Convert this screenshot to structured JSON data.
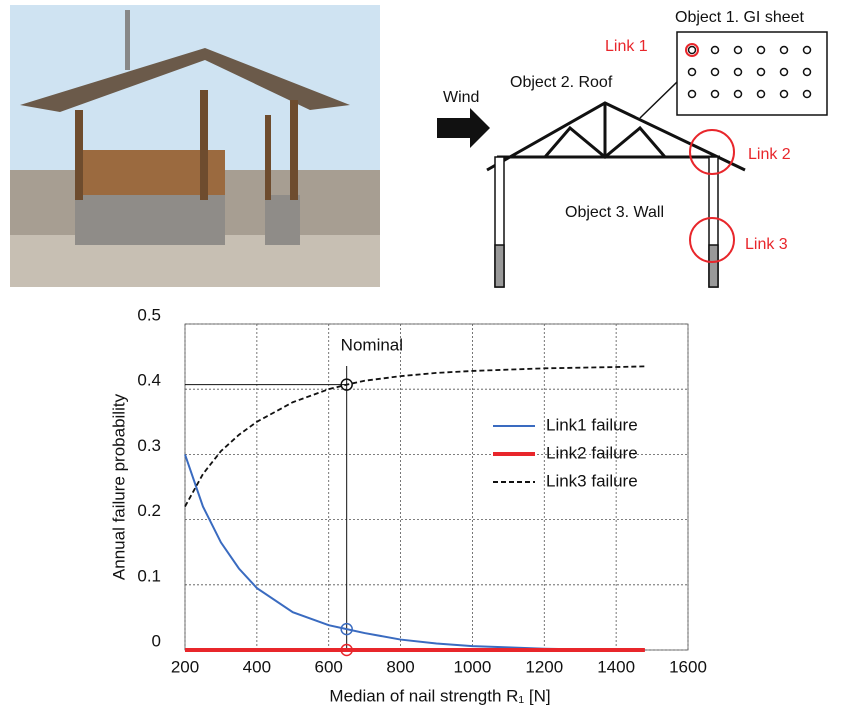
{
  "diagram": {
    "sheet_label": "Object 1. GI sheet",
    "link1": "Link 1",
    "roof_label": "Object 2. Roof",
    "wind": "Wind",
    "link2": "Link 2",
    "wall_label": "Object 3. Wall",
    "link3": "Link 3"
  },
  "chart_data": {
    "type": "line",
    "xlabel": "Median of nail strength R₁ [N]",
    "ylabel": "Annual failure probability",
    "annotation": "Nominal",
    "nominal_x": 650,
    "x": [
      200,
      250,
      300,
      350,
      400,
      500,
      600,
      650,
      700,
      800,
      900,
      1000,
      1100,
      1200,
      1300,
      1400,
      1480
    ],
    "series": [
      {
        "name": "Link1 failure",
        "color": "#3a6bc0",
        "dash": "solid",
        "values": [
          0.3,
          0.22,
          0.165,
          0.125,
          0.095,
          0.058,
          0.038,
          0.032,
          0.026,
          0.016,
          0.01,
          0.006,
          0.004,
          0.002,
          0.001,
          0.0005,
          0
        ]
      },
      {
        "name": "Link2 failure",
        "color": "#e8262b",
        "dash": "solid",
        "values": [
          0,
          0,
          0,
          0,
          0,
          0,
          0,
          0,
          0,
          0,
          0,
          0,
          0,
          0,
          0,
          0,
          0
        ]
      },
      {
        "name": "Link3 failure",
        "color": "#111111",
        "dash": "dashed",
        "values": [
          0.22,
          0.27,
          0.305,
          0.33,
          0.35,
          0.38,
          0.4,
          0.407,
          0.413,
          0.42,
          0.425,
          0.428,
          0.43,
          0.432,
          0.433,
          0.434,
          0.435
        ]
      }
    ],
    "xlim": [
      200,
      1600
    ],
    "xticks": [
      200,
      400,
      600,
      800,
      1000,
      1200,
      1400,
      1600
    ],
    "ylim": [
      0,
      0.5
    ],
    "yticks": [
      0,
      0.1,
      0.2,
      0.3,
      0.4,
      0.5
    ],
    "grid": true,
    "legend": "right"
  }
}
